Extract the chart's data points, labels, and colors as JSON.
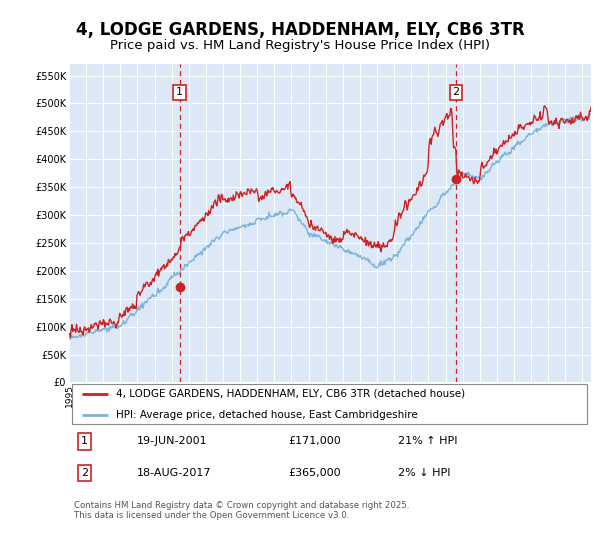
{
  "title": "4, LODGE GARDENS, HADDENHAM, ELY, CB6 3TR",
  "subtitle": "Price paid vs. HM Land Registry's House Price Index (HPI)",
  "title_fontsize": 12,
  "subtitle_fontsize": 9.5,
  "background_color": "#ffffff",
  "plot_bg_color": "#dce8f5",
  "ylim": [
    0,
    570000
  ],
  "yticks": [
    0,
    50000,
    100000,
    150000,
    200000,
    250000,
    300000,
    350000,
    400000,
    450000,
    500000,
    550000
  ],
  "ytick_labels": [
    "£0",
    "£50K",
    "£100K",
    "£150K",
    "£200K",
    "£250K",
    "£300K",
    "£350K",
    "£400K",
    "£450K",
    "£500K",
    "£550K"
  ],
  "xlim_start": 1995.0,
  "xlim_end": 2025.5,
  "x_year_start": 1995,
  "x_year_end": 2026,
  "grid_color": "#ffffff",
  "hpi_line_color": "#7eb3d8",
  "price_line_color": "#cc2222",
  "vline_color": "#cc2222",
  "sale1_year": 2001.46,
  "sale1_price": 171000,
  "sale2_year": 2017.62,
  "sale2_price": 365000,
  "legend_line1": "4, LODGE GARDENS, HADDENHAM, ELY, CB6 3TR (detached house)",
  "legend_line2": "HPI: Average price, detached house, East Cambridgeshire",
  "annotation1_date": "19-JUN-2001",
  "annotation1_price": "£171,000",
  "annotation1_hpi": "21% ↑ HPI",
  "annotation2_date": "18-AUG-2017",
  "annotation2_price": "£365,000",
  "annotation2_hpi": "2% ↓ HPI",
  "footer": "Contains HM Land Registry data © Crown copyright and database right 2025.\nThis data is licensed under the Open Government Licence v3.0."
}
